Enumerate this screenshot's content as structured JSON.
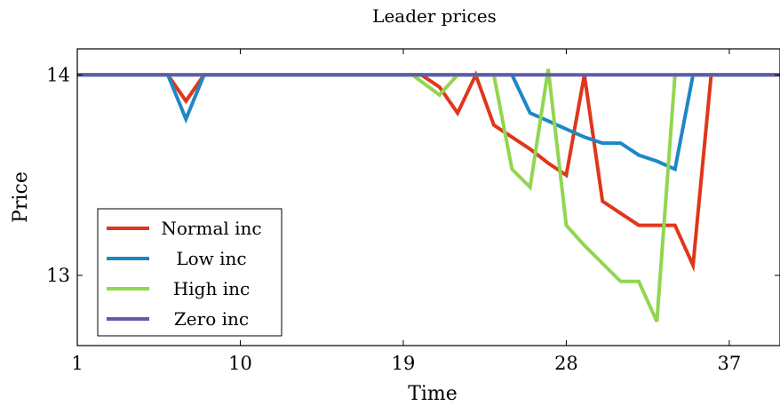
{
  "chart_data": {
    "type": "line",
    "title": "Leader prices",
    "xlabel": "Time",
    "ylabel": "Price",
    "xlim": [
      1,
      39.8
    ],
    "ylim": [
      12.65,
      14.13
    ],
    "xticks": [
      1,
      10,
      19,
      28,
      37
    ],
    "yticks": [
      13,
      14
    ],
    "grid": false,
    "legend_position": "bottom-left",
    "series": [
      {
        "name": "Normal inc",
        "color": "#e0361c",
        "points": [
          [
            1,
            14
          ],
          [
            6,
            14
          ],
          [
            7,
            13.87
          ],
          [
            8,
            14
          ],
          [
            20,
            14
          ],
          [
            21,
            13.94
          ],
          [
            22,
            13.81
          ],
          [
            23,
            14
          ],
          [
            24,
            13.75
          ],
          [
            25,
            13.69
          ],
          [
            26,
            13.63
          ],
          [
            27,
            13.56
          ],
          [
            28,
            13.5
          ],
          [
            29,
            14
          ],
          [
            30,
            13.37
          ],
          [
            31,
            13.31
          ],
          [
            32,
            13.25
          ],
          [
            33,
            13.25
          ],
          [
            34,
            13.25
          ],
          [
            35,
            13.05
          ],
          [
            36,
            14
          ],
          [
            39.8,
            14
          ]
        ]
      },
      {
        "name": "Low inc",
        "color": "#1d87c6",
        "points": [
          [
            1,
            14
          ],
          [
            6,
            14
          ],
          [
            7,
            13.78
          ],
          [
            8,
            14
          ],
          [
            25,
            14
          ],
          [
            26,
            13.81
          ],
          [
            27,
            13.77
          ],
          [
            28,
            13.73
          ],
          [
            29,
            13.69
          ],
          [
            30,
            13.66
          ],
          [
            31,
            13.66
          ],
          [
            32,
            13.6
          ],
          [
            33,
            13.57
          ],
          [
            34,
            13.53
          ],
          [
            35,
            14
          ],
          [
            39.8,
            14
          ]
        ]
      },
      {
        "name": "High inc",
        "color": "#92d650",
        "points": [
          [
            1,
            14
          ],
          [
            19.5,
            14
          ],
          [
            21,
            13.9
          ],
          [
            22,
            14
          ],
          [
            24,
            14
          ],
          [
            25,
            13.53
          ],
          [
            26,
            13.44
          ],
          [
            27,
            14.03
          ],
          [
            28,
            13.25
          ],
          [
            29,
            13.15
          ],
          [
            30,
            13.06
          ],
          [
            31,
            12.97
          ],
          [
            32,
            12.97
          ],
          [
            33,
            12.77
          ],
          [
            34,
            14
          ],
          [
            39.8,
            14
          ]
        ]
      },
      {
        "name": "Zero inc",
        "color": "#5e5cab",
        "points": [
          [
            1,
            14
          ],
          [
            39.8,
            14
          ]
        ]
      }
    ]
  }
}
